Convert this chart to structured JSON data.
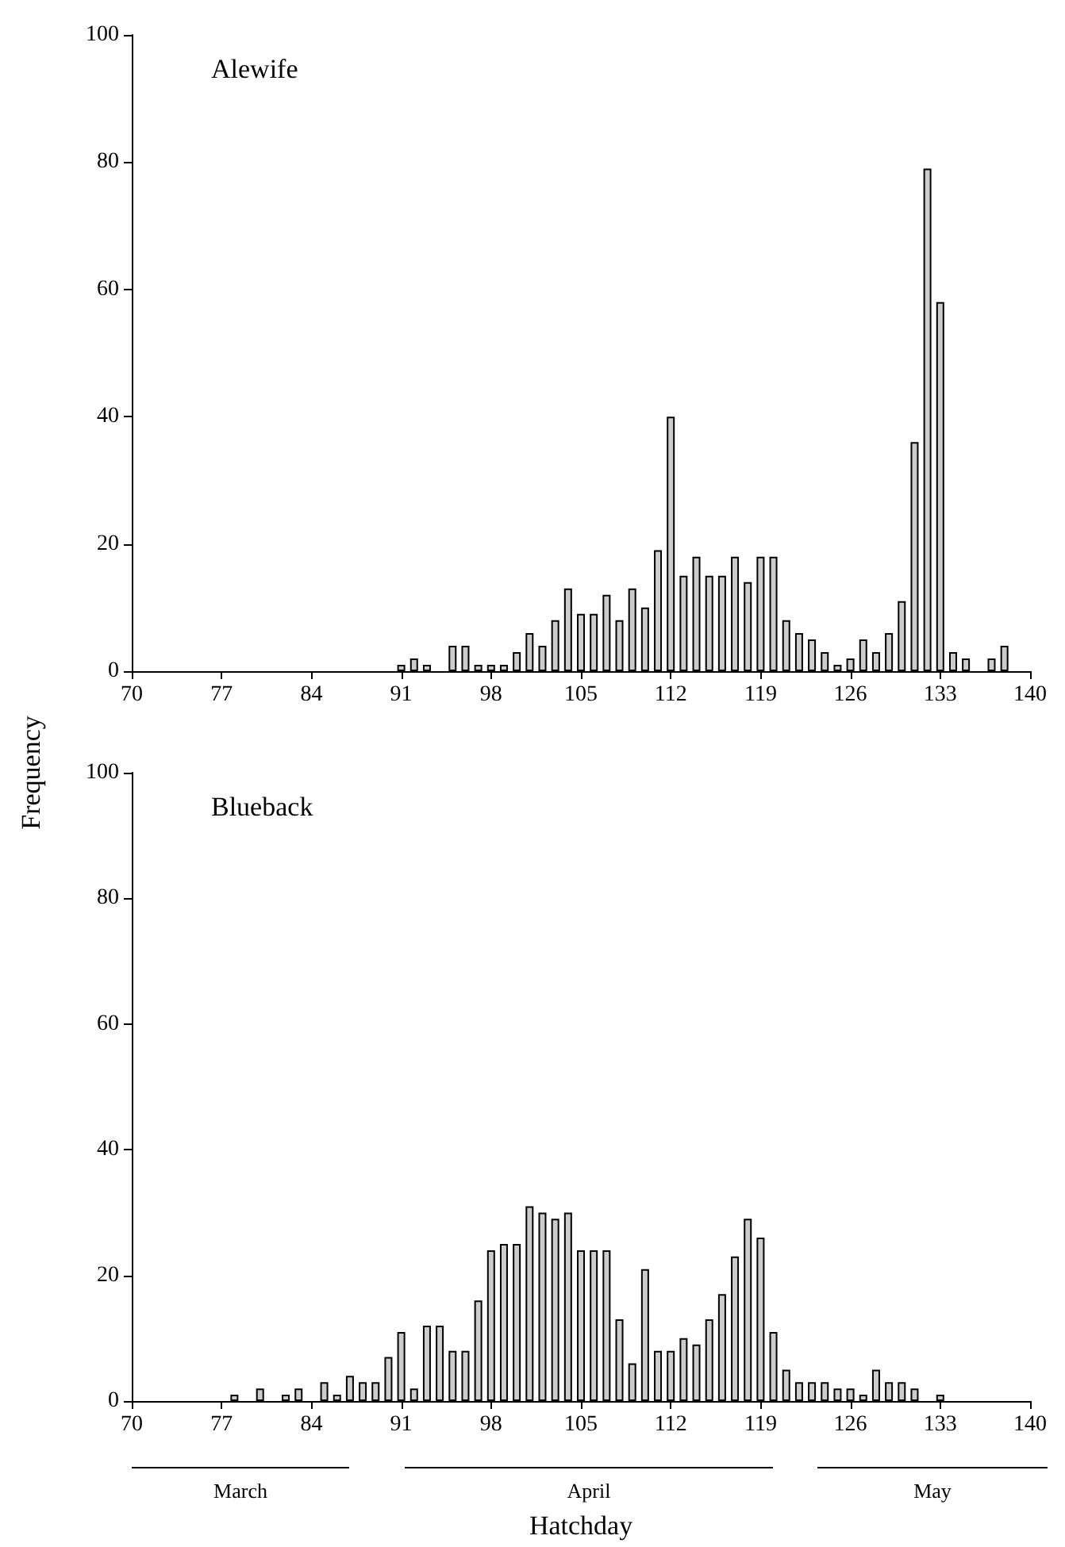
{
  "chart_data": [
    {
      "type": "bar",
      "title": "Alewife",
      "ylabel": "Frequency",
      "color": "#cccccc",
      "grid": false,
      "x": [
        91,
        92,
        93,
        95,
        96,
        97,
        98,
        99,
        100,
        101,
        102,
        103,
        104,
        105,
        106,
        107,
        108,
        109,
        110,
        111,
        112,
        113,
        114,
        115,
        116,
        117,
        118,
        119,
        120,
        121,
        122,
        123,
        124,
        125,
        126,
        127,
        128,
        129,
        130,
        131,
        132,
        133,
        134,
        135,
        137,
        138
      ],
      "values": [
        1,
        2,
        1,
        4,
        4,
        1,
        1,
        1,
        3,
        6,
        4,
        8,
        13,
        9,
        9,
        12,
        8,
        13,
        10,
        19,
        40,
        15,
        18,
        15,
        15,
        18,
        14,
        18,
        18,
        8,
        6,
        5,
        3,
        1,
        2,
        5,
        3,
        6,
        11,
        36,
        79,
        58,
        3,
        2,
        2,
        4
      ],
      "xlim": [
        70,
        140
      ],
      "xticks": [
        70,
        77,
        84,
        91,
        98,
        105,
        112,
        119,
        126,
        133,
        140
      ],
      "ylim": [
        0,
        100
      ],
      "yticks": [
        0,
        20,
        40,
        60,
        80,
        100
      ]
    },
    {
      "type": "bar",
      "title": "Blueback",
      "xlabel": "Hatchday",
      "color": "#cccccc",
      "grid": false,
      "x": [
        78,
        80,
        82,
        83,
        85,
        86,
        87,
        88,
        89,
        90,
        91,
        92,
        93,
        94,
        95,
        96,
        97,
        98,
        99,
        100,
        101,
        102,
        103,
        104,
        105,
        106,
        107,
        108,
        109,
        110,
        111,
        112,
        113,
        114,
        115,
        116,
        117,
        118,
        119,
        120,
        121,
        122,
        123,
        124,
        125,
        126,
        127,
        128,
        129,
        130,
        131,
        133
      ],
      "values": [
        1,
        2,
        1,
        2,
        3,
        1,
        4,
        3,
        3,
        7,
        11,
        2,
        12,
        12,
        8,
        8,
        16,
        24,
        25,
        25,
        31,
        30,
        29,
        30,
        24,
        24,
        24,
        13,
        6,
        21,
        8,
        8,
        10,
        9,
        13,
        17,
        23,
        29,
        26,
        11,
        5,
        3,
        3,
        3,
        2,
        2,
        1,
        5,
        3,
        3,
        2,
        1
      ],
      "xlim": [
        70,
        140
      ],
      "xticks": [
        70,
        77,
        84,
        91,
        98,
        105,
        112,
        119,
        126,
        133,
        140
      ],
      "ylim": [
        0,
        100
      ],
      "yticks": [
        0,
        20,
        40,
        60,
        80,
        100
      ],
      "annotations": [
        "March",
        "April",
        "May"
      ]
    }
  ]
}
